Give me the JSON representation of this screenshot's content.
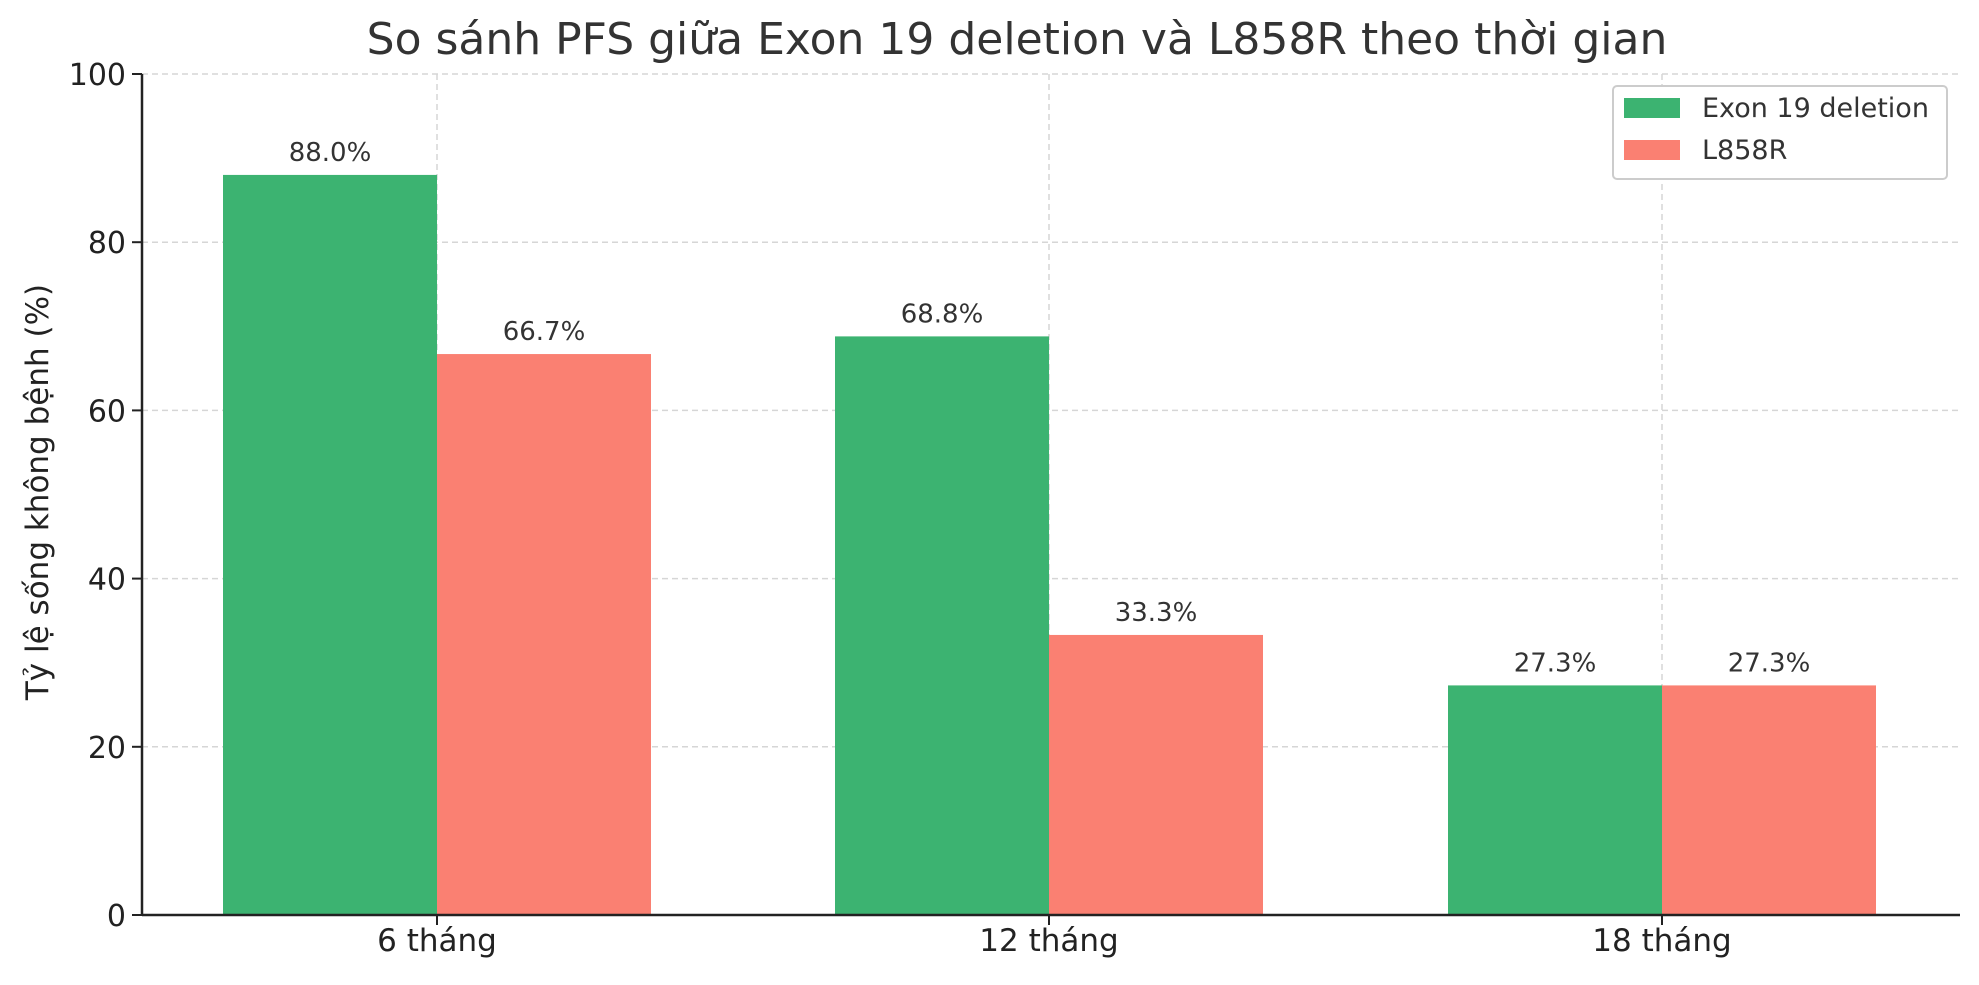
{
  "chart_data": {
    "type": "bar",
    "title": "So sánh PFS giữa Exon 19 deletion và L858R theo thời gian",
    "xlabel": "",
    "ylabel": "Tỷ lệ sống không bệnh (%)",
    "categories": [
      "6 tháng",
      "12 tháng",
      "18 tháng"
    ],
    "series": [
      {
        "name": "Exon 19 deletion",
        "color": "#3cb371",
        "values": [
          88.0,
          68.8,
          27.3
        ],
        "labels": [
          "88.0%",
          "68.8%",
          "27.3%"
        ]
      },
      {
        "name": "L858R",
        "color": "#fa8072",
        "values": [
          66.7,
          33.3,
          27.3
        ],
        "labels": [
          "66.7%",
          "33.3%",
          "27.3%"
        ]
      }
    ],
    "ylim": [
      0,
      100
    ],
    "yticks": [
      0,
      20,
      40,
      60,
      80,
      100
    ],
    "ytick_labels": [
      "0",
      "20",
      "40",
      "60",
      "80",
      "100"
    ],
    "grid": true,
    "legend_position": "top-right"
  }
}
